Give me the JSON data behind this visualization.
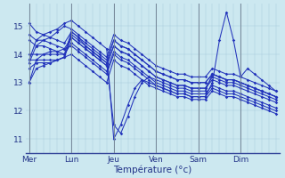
{
  "xlabel": "Température (°c)",
  "background_color": "#cce8f0",
  "grid_color": "#aaccdd",
  "line_color": "#2233bb",
  "sep_color": "#778899",
  "day_labels": [
    "Mer",
    "Lun",
    "Jeu",
    "Ven",
    "Sam",
    "Dim"
  ],
  "day_positions": [
    0,
    6,
    12,
    18,
    24,
    30
  ],
  "ylim": [
    10.5,
    15.8
  ],
  "xlim": [
    -0.5,
    35.5
  ],
  "yticks": [
    11,
    12,
    13,
    14,
    15
  ],
  "series": [
    [
      15.1,
      14.8,
      14.7,
      14.6,
      14.5,
      14.4,
      14.8,
      14.6,
      14.3,
      14.1,
      13.9,
      13.7,
      14.5,
      14.3,
      14.2,
      14.0,
      13.8,
      13.6,
      13.4,
      13.3,
      13.2,
      13.1,
      13.1,
      13.0,
      13.0,
      13.0,
      13.3,
      13.2,
      13.1,
      13.1,
      13.0,
      12.9,
      12.8,
      12.7,
      12.6,
      12.5
    ],
    [
      14.7,
      14.5,
      14.5,
      14.4,
      14.3,
      14.2,
      14.6,
      14.4,
      14.2,
      14.0,
      13.8,
      13.6,
      14.3,
      14.1,
      14.0,
      13.8,
      13.6,
      13.4,
      13.2,
      13.1,
      13.0,
      12.9,
      12.9,
      12.8,
      12.8,
      12.8,
      13.1,
      13.0,
      12.9,
      12.9,
      12.8,
      12.7,
      12.6,
      12.5,
      12.4,
      12.3
    ],
    [
      14.5,
      14.3,
      14.3,
      14.2,
      14.1,
      14.0,
      14.4,
      14.2,
      14.0,
      13.8,
      13.6,
      13.4,
      14.1,
      13.9,
      13.8,
      13.6,
      13.4,
      13.2,
      13.0,
      12.9,
      12.8,
      12.7,
      12.7,
      12.6,
      12.6,
      12.6,
      12.9,
      12.8,
      12.7,
      12.7,
      12.6,
      12.5,
      12.4,
      12.3,
      12.2,
      12.1
    ],
    [
      14.0,
      14.0,
      14.0,
      14.1,
      14.1,
      14.2,
      14.3,
      14.1,
      13.9,
      13.7,
      13.5,
      13.3,
      14.0,
      13.8,
      13.7,
      13.5,
      13.3,
      13.1,
      12.9,
      12.8,
      12.7,
      12.6,
      12.6,
      12.5,
      12.5,
      12.5,
      12.8,
      12.7,
      12.6,
      12.6,
      12.5,
      12.4,
      12.3,
      12.2,
      12.1,
      12.0
    ],
    [
      13.8,
      13.8,
      13.8,
      13.8,
      13.8,
      13.9,
      14.0,
      13.8,
      13.6,
      13.4,
      13.2,
      13.0,
      13.8,
      13.6,
      13.5,
      13.3,
      13.1,
      12.9,
      12.8,
      12.7,
      12.6,
      12.5,
      12.5,
      12.4,
      12.4,
      12.4,
      12.7,
      12.6,
      12.5,
      12.5,
      12.4,
      12.3,
      12.2,
      12.1,
      12.0,
      11.9
    ],
    [
      13.5,
      13.7,
      13.7,
      13.7,
      13.8,
      13.9,
      14.6,
      14.4,
      14.2,
      14.0,
      13.8,
      13.6,
      14.3,
      14.1,
      14.0,
      13.8,
      13.6,
      13.4,
      13.2,
      13.1,
      13.0,
      12.9,
      12.9,
      12.8,
      12.8,
      12.8,
      13.2,
      13.1,
      13.0,
      13.0,
      12.9,
      12.8,
      12.7,
      12.6,
      12.5,
      12.4
    ],
    [
      13.0,
      13.5,
      13.6,
      13.7,
      13.8,
      13.9,
      14.7,
      14.5,
      14.3,
      14.1,
      13.9,
      13.7,
      11.5,
      11.2,
      11.8,
      12.5,
      13.0,
      13.2,
      13.1,
      13.0,
      12.9,
      12.8,
      12.8,
      12.7,
      12.7,
      12.7,
      13.3,
      13.2,
      13.1,
      13.1,
      13.0,
      12.9,
      12.8,
      12.7,
      12.6,
      12.5
    ],
    [
      13.7,
      14.3,
      14.5,
      14.6,
      14.8,
      15.0,
      14.9,
      14.7,
      14.5,
      14.3,
      14.1,
      13.9,
      14.7,
      14.5,
      14.4,
      14.2,
      14.0,
      13.8,
      13.6,
      13.5,
      13.4,
      13.3,
      13.3,
      13.2,
      13.2,
      13.2,
      13.5,
      13.4,
      13.3,
      13.3,
      13.2,
      13.1,
      13.0,
      12.9,
      12.8,
      12.7
    ],
    [
      13.8,
      14.5,
      14.7,
      14.8,
      14.9,
      15.1,
      15.2,
      15.0,
      14.8,
      14.6,
      14.4,
      14.2,
      11.0,
      11.5,
      12.2,
      12.8,
      13.1,
      13.0,
      12.9,
      12.8,
      12.7,
      12.6,
      12.6,
      12.5,
      12.5,
      12.5,
      13.0,
      14.5,
      15.5,
      14.5,
      13.2,
      13.5,
      13.3,
      13.1,
      12.9,
      12.7
    ],
    [
      13.0,
      13.8,
      14.0,
      14.0,
      14.0,
      14.0,
      14.8,
      14.6,
      14.4,
      14.2,
      14.0,
      13.8,
      14.5,
      14.3,
      14.2,
      14.0,
      13.8,
      13.6,
      13.4,
      13.3,
      13.2,
      13.1,
      13.1,
      13.0,
      13.0,
      13.0,
      13.3,
      13.2,
      13.1,
      13.1,
      13.0,
      12.9,
      12.8,
      12.7,
      12.6,
      12.5
    ]
  ]
}
